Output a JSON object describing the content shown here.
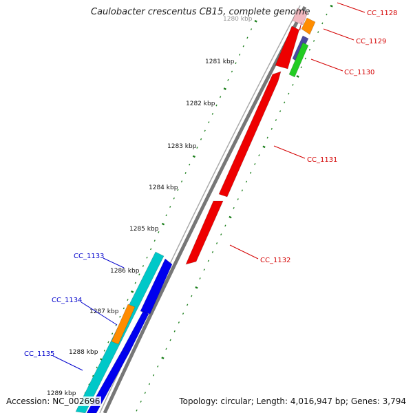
{
  "title": "Caulobacter crescentus CB15, complete genome",
  "accession": "Accession: NC_002696",
  "topology": "Topology: circular; Length: 4,016,947 bp; Genes: 3,794",
  "colors": {
    "backbone": "#777777",
    "tick": "#1b7f1b",
    "forward_label": "#d40000",
    "reverse_label": "#0000cc",
    "gene_red": "#ee0000",
    "gene_orange": "#ff8c00",
    "gene_blue": "#0000ee",
    "gene_cyan": "#00c8c8",
    "gene_green": "#22cc22",
    "gene_purple": "#4a4aa0",
    "gene_pink": "#f2b8bf"
  },
  "kbp_ticks": [
    {
      "label": "1280 kbp"
    },
    {
      "label": "1281 kbp"
    },
    {
      "label": "1282 kbp"
    },
    {
      "label": "1283 kbp"
    },
    {
      "label": "1284 kbp"
    },
    {
      "label": "1285 kbp"
    },
    {
      "label": "1286 kbp"
    },
    {
      "label": "1287 kbp"
    },
    {
      "label": "1288 kbp"
    },
    {
      "label": "1289 kbp"
    }
  ],
  "gene_labels": [
    {
      "text": "CC_1128",
      "strand": "forward"
    },
    {
      "text": "CC_1129",
      "strand": "forward"
    },
    {
      "text": "CC_1130",
      "strand": "forward"
    },
    {
      "text": "CC_1131",
      "strand": "forward"
    },
    {
      "text": "CC_1132",
      "strand": "forward"
    },
    {
      "text": "CC_1133",
      "strand": "reverse"
    },
    {
      "text": "CC_1134",
      "strand": "reverse"
    },
    {
      "text": "CC_1135",
      "strand": "reverse"
    }
  ]
}
